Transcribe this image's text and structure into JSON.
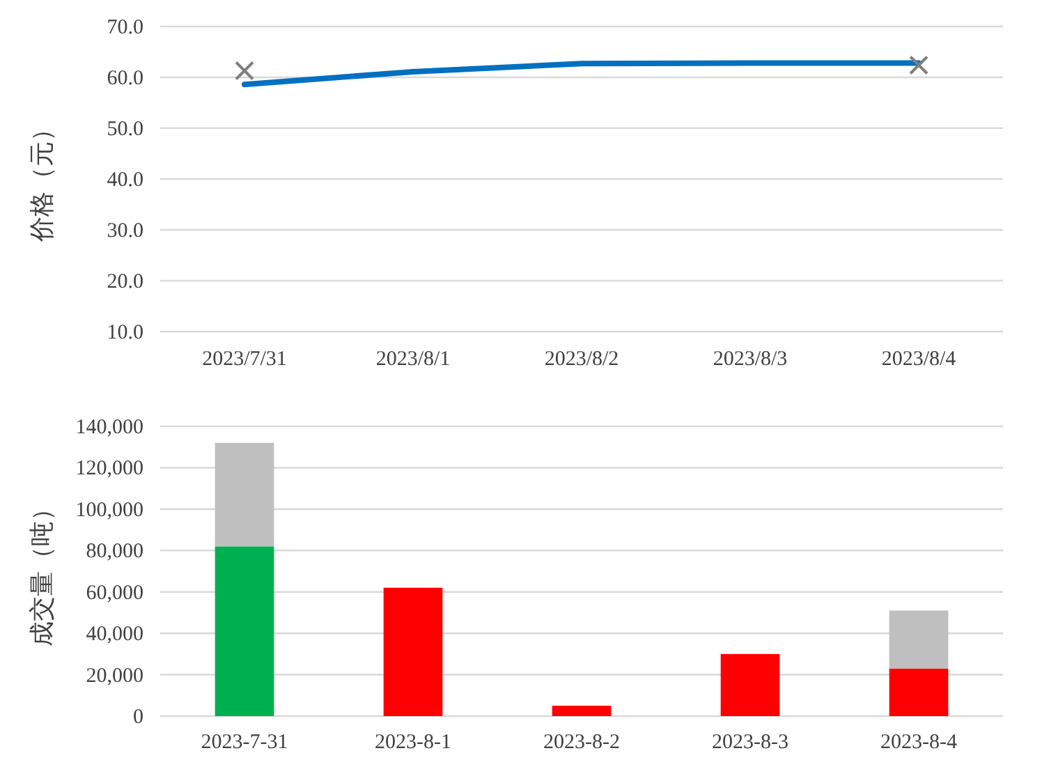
{
  "chart_data": [
    {
      "type": "line",
      "ylabel": "价格（元）",
      "categories": [
        "2023/7/31",
        "2023/8/1",
        "2023/8/2",
        "2023/8/3",
        "2023/8/4"
      ],
      "series": [
        {
          "color": "#0070c0",
          "marker": "none",
          "values": [
            58.6,
            61.1,
            62.7,
            62.8,
            62.8
          ]
        },
        {
          "type": "scatter",
          "color": "#7f7f7f",
          "marker": "cross",
          "values": [
            61.3,
            null,
            null,
            null,
            62.4
          ]
        }
      ],
      "ylim": [
        10,
        70
      ],
      "yticks": [
        {
          "value": 10,
          "label": "10.0"
        },
        {
          "value": 20,
          "label": "20.0"
        },
        {
          "value": 30,
          "label": "30.0"
        },
        {
          "value": 40,
          "label": "40.0"
        },
        {
          "value": 50,
          "label": "50.0"
        },
        {
          "value": 60,
          "label": "60.0"
        },
        {
          "value": 70,
          "label": "70.0"
        }
      ],
      "grid": "y"
    },
    {
      "type": "bar",
      "stacked": true,
      "ylabel": "成交量（吨）",
      "categories": [
        "2023-7-31",
        "2023-8-1",
        "2023-8-2",
        "2023-8-3",
        "2023-8-4"
      ],
      "series": [
        {
          "colors": [
            "#00b050",
            "#ff0000",
            "#ff0000",
            "#ff0000",
            "#ff0000"
          ],
          "values": [
            82000,
            62000,
            5000,
            30000,
            23000
          ]
        },
        {
          "color": "#bfbfbf",
          "values": [
            50000,
            null,
            null,
            null,
            28000
          ]
        }
      ],
      "ylim": [
        0,
        140000
      ],
      "yticks": [
        0,
        {
          "value": 20000,
          "label": "20,000"
        },
        {
          "value": 40000,
          "label": "40,000"
        },
        {
          "value": 60000,
          "label": "60,000"
        },
        {
          "value": 80000,
          "label": "80,000"
        },
        {
          "value": 100000,
          "label": "100,000"
        },
        {
          "value": 120000,
          "label": "120,000"
        },
        {
          "value": 140000,
          "label": "140,000"
        }
      ],
      "grid": "y"
    }
  ]
}
